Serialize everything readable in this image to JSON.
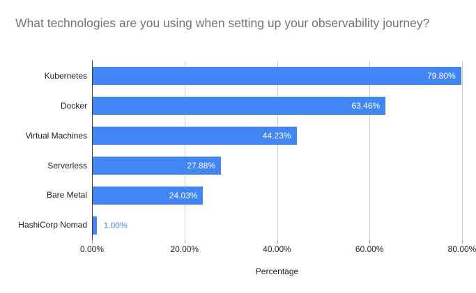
{
  "title": "What technologies are you using when setting up your observability journey?",
  "colors": {
    "background": "#ffffff",
    "bar": "#4285f4",
    "title_text": "#757575",
    "gridline": "#cccccc",
    "axis_line": "#424242",
    "tick_mark": "#9e9e9e",
    "axis_text": "#202124",
    "value_label_inside": "#ffffff",
    "value_label_outside": "#4285f4"
  },
  "chart_data": {
    "type": "bar",
    "orientation": "horizontal",
    "title": "What technologies are you using when setting up your observability journey?",
    "xlabel": "Percentage",
    "ylabel": "",
    "categories": [
      "Kubernetes",
      "Docker",
      "Virtual Machines",
      "Serverless",
      "Bare Metal",
      "HashiCorp Nomad"
    ],
    "values": [
      79.8,
      63.46,
      44.23,
      27.88,
      24.03,
      1.0
    ],
    "value_labels": [
      "79.80%",
      "63.46%",
      "44.23%",
      "27.88%",
      "24.03%",
      "1.00%"
    ],
    "xlim": [
      0,
      80
    ],
    "tick_values": [
      0,
      20,
      40,
      60,
      80
    ],
    "x_ticks": [
      "0.00%",
      "20.00%",
      "40.00%",
      "60.00%",
      "80.00%"
    ],
    "grid": true,
    "legend": "none"
  }
}
